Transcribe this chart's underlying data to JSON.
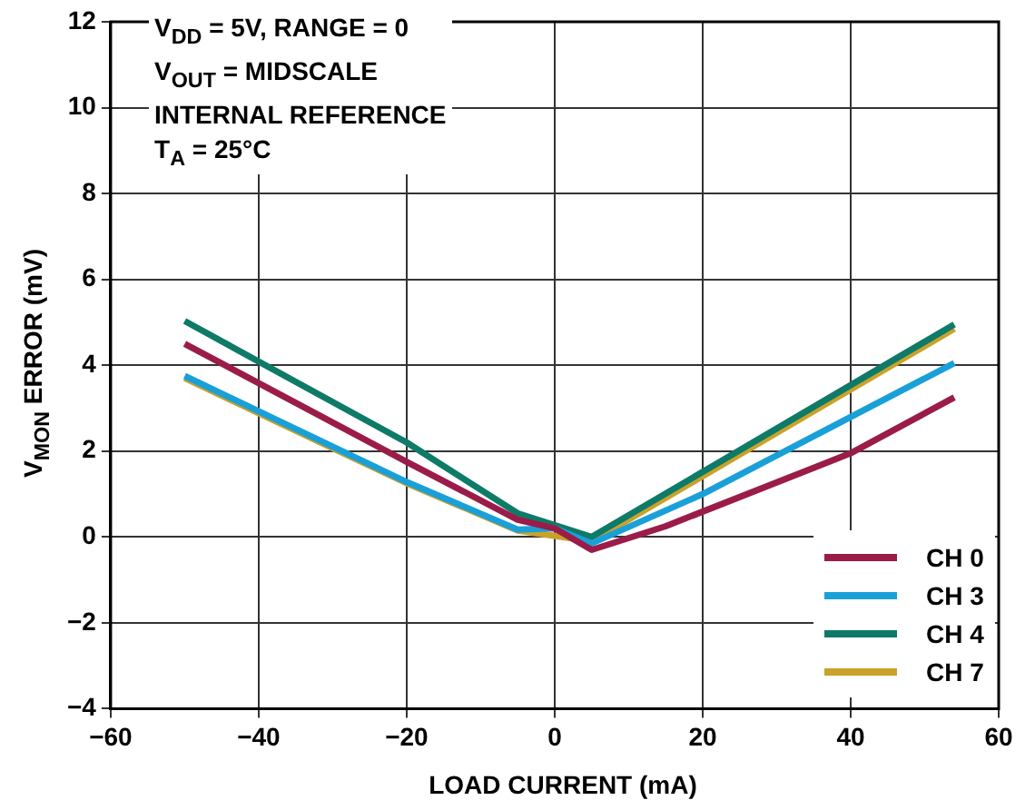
{
  "chart_data": {
    "type": "line",
    "xlabel": "LOAD CURRENT (mA)",
    "ylabel": "V$_{MON}$ ERROR (mV)",
    "annotations": [
      "V$_{DD}$ = 5V, RANGE = 0",
      "V$_{OUT}$ = MIDSCALE",
      "INTERNAL REFERENCE",
      "T$_{A}$ = 25°C"
    ],
    "xlim": [
      -60,
      60
    ],
    "xticks": [
      -60,
      -40,
      -20,
      0,
      20,
      40,
      60
    ],
    "ylim": [
      -4,
      12
    ],
    "yticks": [
      -4,
      -2,
      0,
      2,
      4,
      6,
      8,
      10,
      12
    ],
    "grid": true,
    "legend": "bottom right",
    "marker": "none",
    "line_style": "solid",
    "series": [
      {
        "name": "CH 0",
        "color": "#9b1c48",
        "x": [
          -50,
          -20,
          -5,
          0,
          5,
          15,
          40,
          54
        ],
        "values": [
          4.5,
          1.75,
          0.4,
          0.2,
          -0.3,
          0.25,
          1.95,
          3.25
        ]
      },
      {
        "name": "CH 3",
        "color": "#1aa0d8",
        "x": [
          -50,
          -20,
          -5,
          0,
          5,
          20,
          54
        ],
        "values": [
          3.75,
          1.28,
          0.17,
          0.2,
          -0.15,
          1.0,
          4.05
        ]
      },
      {
        "name": "CH 4",
        "color": "#0e7a68",
        "x": [
          -50,
          -20,
          -5,
          5,
          54
        ],
        "values": [
          5.03,
          2.2,
          0.55,
          0,
          4.95
        ]
      },
      {
        "name": "CH 7",
        "color": "#c9a22a",
        "x": [
          -50,
          -20,
          -5,
          5,
          54
        ],
        "values": [
          3.7,
          1.25,
          0.15,
          -0.1,
          4.85
        ]
      }
    ]
  }
}
